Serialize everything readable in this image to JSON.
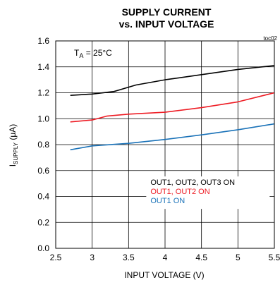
{
  "chart_data": {
    "type": "line",
    "title": [
      "SUPPLY CURRENT",
      "vs. INPUT VOLTAGE"
    ],
    "figure_id": "toc02",
    "condition": {
      "main": "T",
      "sub": "A",
      "rest": " = 25°C"
    },
    "xlabel": "INPUT VOLTAGE (V)",
    "ylabel": {
      "main": "I",
      "sub": "SUPPLY",
      "rest": " (μA)"
    },
    "xlim": [
      2.5,
      5.5
    ],
    "ylim": [
      0.0,
      1.6
    ],
    "xticks": [
      "2.5",
      "3",
      "3.5",
      "4",
      "4.5",
      "5",
      "5.5"
    ],
    "yticks": [
      "0.0",
      "0.2",
      "0.4",
      "0.6",
      "0.8",
      "1.0",
      "1.2",
      "1.4",
      "1.6"
    ],
    "grid": true,
    "legend_position": "center-right",
    "series": [
      {
        "name": "OUT1, OUT2, OUT3 ON",
        "color": "#000000",
        "x": [
          2.7,
          3.0,
          3.3,
          3.6,
          4.0,
          4.5,
          5.0,
          5.5
        ],
        "y": [
          1.18,
          1.19,
          1.21,
          1.26,
          1.3,
          1.34,
          1.38,
          1.41
        ]
      },
      {
        "name": "OUT1, OUT2 ON",
        "color": "#ee1c24",
        "x": [
          2.7,
          3.0,
          3.2,
          3.5,
          4.0,
          4.5,
          5.0,
          5.5
        ],
        "y": [
          0.975,
          0.99,
          1.02,
          1.035,
          1.05,
          1.085,
          1.13,
          1.2
        ]
      },
      {
        "name": "OUT1 ON",
        "color": "#1a72b8",
        "x": [
          2.7,
          3.0,
          3.5,
          4.0,
          4.5,
          5.0,
          5.5
        ],
        "y": [
          0.76,
          0.79,
          0.81,
          0.84,
          0.875,
          0.915,
          0.96
        ]
      }
    ]
  }
}
